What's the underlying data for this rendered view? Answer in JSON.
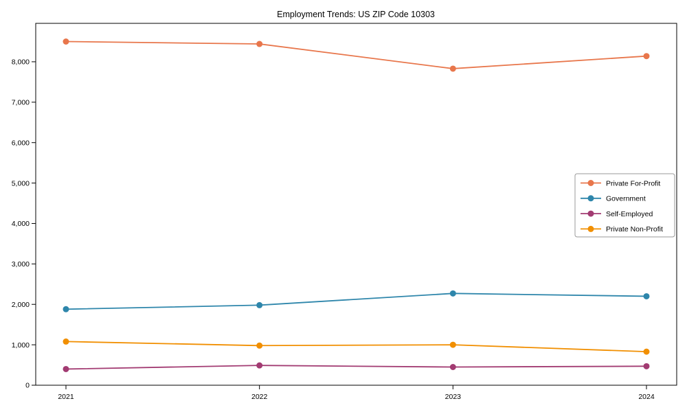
{
  "figure": {
    "background": "#ffffff",
    "frame_color": "#000000"
  },
  "chart_data": {
    "type": "line",
    "title": "Employment Trends: US ZIP Code 10303",
    "xlabel": "",
    "ylabel": "",
    "categories": [
      "2021",
      "2022",
      "2023",
      "2024"
    ],
    "series": [
      {
        "name": "Private For-Profit",
        "color": "#E8764B",
        "values": [
          8500,
          8440,
          7830,
          8140
        ]
      },
      {
        "name": "Government",
        "color": "#2E86AB",
        "values": [
          1880,
          1980,
          2270,
          2200
        ]
      },
      {
        "name": "Self-Employed",
        "color": "#A23B72",
        "values": [
          400,
          490,
          450,
          470
        ]
      },
      {
        "name": "Private Non-Profit",
        "color": "#F18F01",
        "values": [
          1080,
          980,
          1000,
          830
        ]
      }
    ],
    "ylim": [
      0,
      8950
    ],
    "yticks": [
      0,
      1000,
      2000,
      3000,
      4000,
      5000,
      6000,
      7000,
      8000
    ],
    "ytick_labels": [
      "0",
      "1,000",
      "2,000",
      "3,000",
      "4,000",
      "5,000",
      "6,000",
      "7,000",
      "8,000"
    ],
    "grid": false,
    "marker": "circle",
    "legend_position": "center-right",
    "legend_border_color": "#999999"
  }
}
